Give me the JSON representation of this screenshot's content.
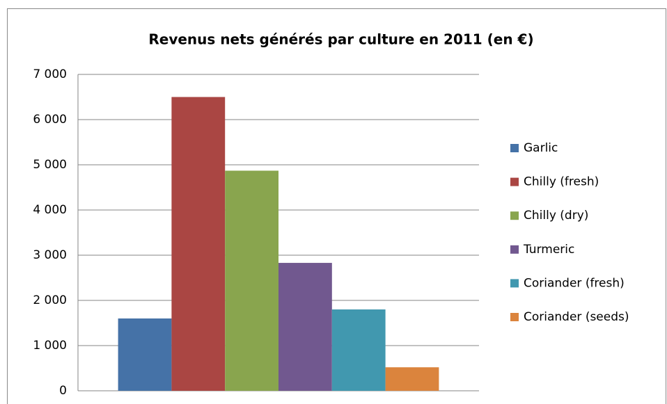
{
  "chart_data": {
    "type": "bar",
    "title": "Revenus nets générés par culture en 2011 (en €)",
    "categories": [
      null
    ],
    "series": [
      {
        "name": "Garlic",
        "color": "#4572a7",
        "values": [
          1600
        ]
      },
      {
        "name": "Chilly  (fresh)",
        "color": "#aa4643",
        "values": [
          6500
        ]
      },
      {
        "name": "Chilly (dry)",
        "color": "#89a54e",
        "values": [
          4870
        ]
      },
      {
        "name": "Turmeric",
        "color": "#71588f",
        "values": [
          2830
        ]
      },
      {
        "name": "Coriander (fresh)",
        "color": "#4198af",
        "values": [
          1800
        ]
      },
      {
        "name": "Coriander (seeds)",
        "color": "#db843d",
        "values": [
          520
        ]
      }
    ],
    "ylim": [
      0,
      7000
    ],
    "yticks": [
      0,
      {
        "value": 1000,
        "label": "1 000"
      },
      {
        "value": 2000,
        "label": "2 000"
      },
      {
        "value": 3000,
        "label": "3 000"
      },
      {
        "value": 4000,
        "label": "4 000"
      },
      {
        "value": 5000,
        "label": "5 000"
      },
      {
        "value": 6000,
        "label": "6 000"
      },
      {
        "value": 7000,
        "label": "7 000"
      }
    ],
    "grid": true,
    "legend": "right"
  }
}
